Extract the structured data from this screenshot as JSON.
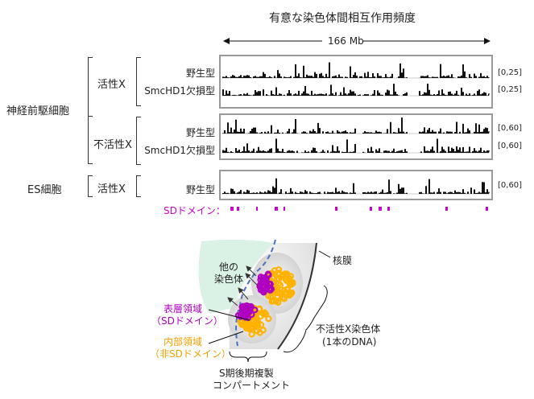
{
  "title": "有意な染色体間相互作用頻度",
  "scale_label": "166 Mb",
  "groups": [
    {
      "label": "神経前駆細胞",
      "subgroups": [
        {
          "label": "活性X",
          "tracks": [
            {
              "label": "野生型",
              "range": "[0,25]"
            },
            {
              "label": "SmcHD1欠損型",
              "range": "[0,25]"
            }
          ]
        },
        {
          "label": "不活性X",
          "tracks": [
            {
              "label": "野生型",
              "range": "[0,60]"
            },
            {
              "label": "SmcHD1欠損型",
              "range": "[0,60]"
            }
          ]
        }
      ]
    },
    {
      "label": "ES細胞",
      "subgroups": [
        {
          "label": "活性X",
          "tracks": [
            {
              "label": "野生型",
              "range": "[0,60]"
            }
          ]
        }
      ]
    }
  ],
  "sd_label": "SDドメイン：",
  "colors": {
    "sd": "#cc00cc",
    "inner": "#ffb300",
    "surface": "#b000c0",
    "track": "#111111"
  },
  "diagram": {
    "other_chromosome": "他の\n染色体",
    "surface_region": "表層領域",
    "surface_region_sub": "（SDドメイン）",
    "inner_region": "内部領域",
    "inner_region_sub": "（非SDドメイン）",
    "nuclear_membrane": "核膜",
    "inactive_x": "不活性X染色体",
    "inactive_x_sub": "(1本のDNA)",
    "compartment": "S期後期複製",
    "compartment_sub": "コンパートメント"
  }
}
